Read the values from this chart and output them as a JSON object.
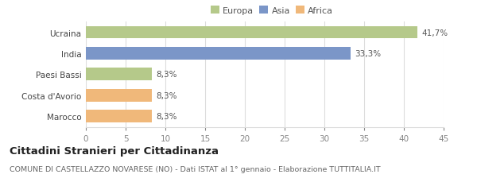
{
  "categories": [
    "Marocco",
    "Costa d'Avorio",
    "Paesi Bassi",
    "India",
    "Ucraina"
  ],
  "values": [
    8.3,
    8.3,
    8.3,
    33.3,
    41.7
  ],
  "labels": [
    "8,3%",
    "8,3%",
    "8,3%",
    "33,3%",
    "41,7%"
  ],
  "bar_colors": [
    "#f0b87a",
    "#f0b87a",
    "#b5c98a",
    "#7b96c8",
    "#b5c98a"
  ],
  "legend_items": [
    {
      "label": "Europa",
      "color": "#b5c98a"
    },
    {
      "label": "Asia",
      "color": "#7b96c8"
    },
    {
      "label": "Africa",
      "color": "#f0b87a"
    }
  ],
  "xlim": [
    0,
    45
  ],
  "xticks": [
    0,
    5,
    10,
    15,
    20,
    25,
    30,
    35,
    40,
    45
  ],
  "title": "Cittadini Stranieri per Cittadinanza",
  "subtitle": "COMUNE DI CASTELLAZZO NOVARESE (NO) - Dati ISTAT al 1° gennaio - Elaborazione TUTTITALIA.IT",
  "background_color": "#ffffff",
  "grid_color": "#dddddd",
  "bar_label_fontsize": 7.5,
  "tick_fontsize": 7.5,
  "ylabel_fontsize": 7.5,
  "legend_fontsize": 8.0,
  "title_fontsize": 9.5,
  "subtitle_fontsize": 6.8
}
